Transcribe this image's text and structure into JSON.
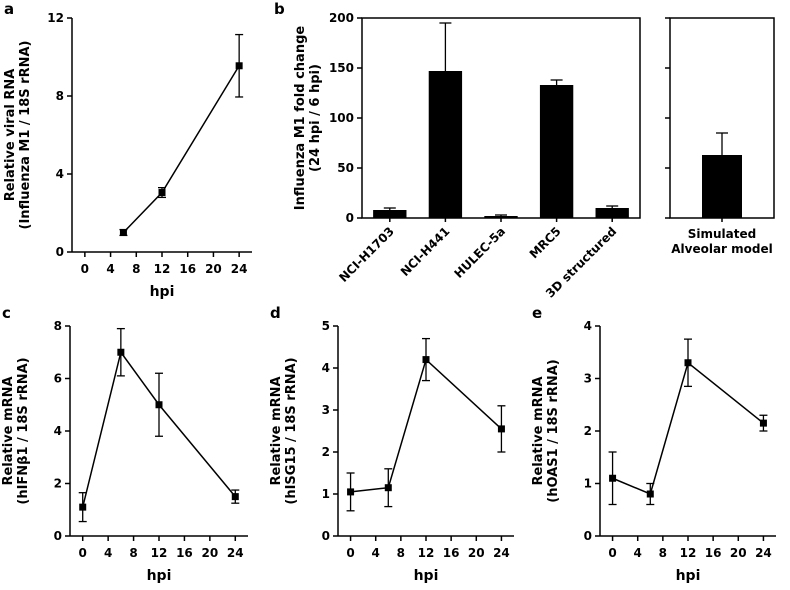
{
  "panel_labels": {
    "a": "a",
    "b": "b",
    "c": "c",
    "d": "d",
    "e": "e"
  },
  "chart_data": [
    {
      "id": "a",
      "type": "line",
      "x": [
        6,
        12,
        24
      ],
      "values": [
        1.0,
        3.05,
        9.55
      ],
      "errors": [
        0.15,
        0.25,
        1.6
      ],
      "xlabel": "hpi",
      "ylabel_lines": [
        "Relative viral RNA",
        "(Influenza M1 / 18S rRNA)"
      ],
      "xlim": [
        -2,
        26
      ],
      "ylim": [
        0,
        12
      ],
      "xticks": [
        0,
        4,
        8,
        12,
        16,
        20,
        24
      ],
      "yticks": [
        0,
        4,
        8,
        12
      ],
      "box": false
    },
    {
      "id": "b-main",
      "type": "bar",
      "categories": [
        "NCI-H1703",
        "NCI-H441",
        "HULEC-5a",
        "MRC5",
        "3D structured"
      ],
      "values": [
        8,
        147,
        2,
        133,
        10
      ],
      "errors": [
        2,
        48,
        1,
        5,
        2
      ],
      "ylabel_lines": [
        "Influenza M1 fold change",
        "(24 hpi / 6 hpi)"
      ],
      "ylim": [
        0,
        200
      ],
      "yticks": [
        0,
        50,
        100,
        150,
        200
      ],
      "box": true,
      "tick_label_rotation": -45
    },
    {
      "id": "b-right",
      "type": "bar",
      "categories": [
        "Simulated\nAlveolar model"
      ],
      "values": [
        63
      ],
      "errors": [
        22
      ],
      "ylim": [
        0,
        200
      ],
      "yticks": [
        0,
        50,
        100,
        150,
        200
      ],
      "show_ytick_labels": false,
      "box": true
    },
    {
      "id": "c",
      "type": "line",
      "x": [
        0,
        6,
        12,
        24
      ],
      "values": [
        1.1,
        7.0,
        5.0,
        1.5
      ],
      "errors": [
        0.55,
        0.9,
        1.2,
        0.25
      ],
      "xlabel": "hpi",
      "ylabel_lines": [
        "Relative mRNA",
        "(hIFNβ1 / 18S rRNA)"
      ],
      "xlim": [
        -2,
        26
      ],
      "ylim": [
        0,
        8
      ],
      "xticks": [
        0,
        4,
        8,
        12,
        16,
        20,
        24
      ],
      "yticks": [
        0,
        2,
        4,
        6,
        8
      ],
      "box": false
    },
    {
      "id": "d",
      "type": "line",
      "x": [
        0,
        6,
        12,
        24
      ],
      "values": [
        1.05,
        1.15,
        4.2,
        2.55
      ],
      "errors": [
        0.45,
        0.45,
        0.5,
        0.55
      ],
      "xlabel": "hpi",
      "ylabel_lines": [
        "Relative mRNA",
        "(hISG15 / 18S rRNA)"
      ],
      "xlim": [
        -2,
        26
      ],
      "ylim": [
        0,
        5
      ],
      "xticks": [
        0,
        4,
        8,
        12,
        16,
        20,
        24
      ],
      "yticks": [
        0,
        1,
        2,
        3,
        4,
        5
      ],
      "box": false
    },
    {
      "id": "e",
      "type": "line",
      "x": [
        0,
        6,
        12,
        24
      ],
      "values": [
        1.1,
        0.8,
        3.3,
        2.15
      ],
      "errors": [
        0.5,
        0.2,
        0.45,
        0.15
      ],
      "xlabel": "hpi",
      "ylabel_lines": [
        "Relative mRNA",
        "(hOAS1 / 18S rRNA)"
      ],
      "xlim": [
        -2,
        26
      ],
      "ylim": [
        0,
        4
      ],
      "xticks": [
        0,
        4,
        8,
        12,
        16,
        20,
        24
      ],
      "yticks": [
        0,
        1,
        2,
        3,
        4
      ],
      "box": false
    }
  ]
}
